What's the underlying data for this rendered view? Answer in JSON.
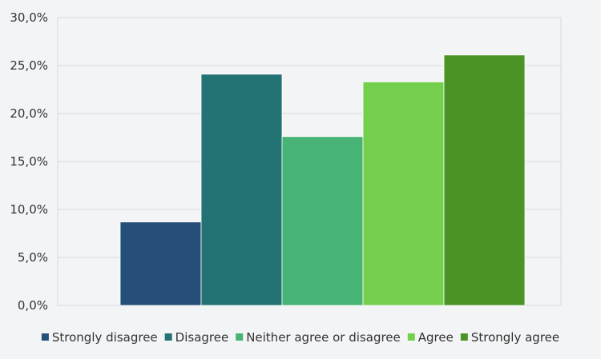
{
  "chart_data": {
    "type": "bar",
    "title": "",
    "xlabel": "",
    "ylabel": "",
    "categories": [
      ""
    ],
    "series": [
      {
        "name": "Strongly disagree",
        "values": [
          8.7
        ],
        "color": "#264f78"
      },
      {
        "name": "Disagree",
        "values": [
          24.1
        ],
        "color": "#237274"
      },
      {
        "name": "Neither agree or disagree",
        "values": [
          17.6
        ],
        "color": "#47b374"
      },
      {
        "name": "Agree",
        "values": [
          23.3
        ],
        "color": "#75cf4e"
      },
      {
        "name": "Strongly agree",
        "values": [
          26.1
        ],
        "color": "#4a9426"
      }
    ],
    "ylim": [
      0,
      30
    ],
    "yticks": [
      "0,0%",
      "5,0%",
      "10,0%",
      "15,0%",
      "20,0%",
      "25,0%",
      "30,0%"
    ],
    "grid": true,
    "legend_position": "bottom"
  }
}
